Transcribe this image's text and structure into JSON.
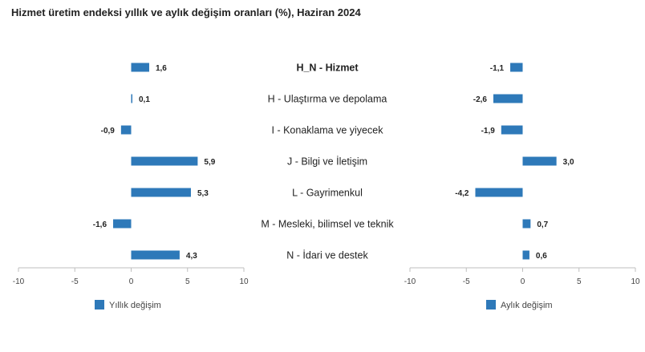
{
  "title": "Hizmet üretim endeksi yıllık ve aylık değişim oranları (%), Haziran 2024",
  "colors": {
    "bar": "#2e79b9",
    "axis": "#bfbfbf"
  },
  "chart_data": [
    {
      "type": "bar",
      "orientation": "horizontal",
      "categories": [
        "H_N - Hizmet",
        "H - Ulaştırma ve depolama",
        "I - Konaklama ve yiyecek",
        "J - Bilgi ve İletişim",
        "L - Gayrimenkul",
        "M - Mesleki, bilimsel ve teknik",
        "N - İdari ve destek"
      ],
      "series": [
        {
          "name": "Yıllık değişim",
          "values": [
            1.6,
            0.1,
            -0.9,
            5.9,
            5.3,
            -1.6,
            4.3
          ]
        }
      ],
      "labels": [
        "1,6",
        "0,1",
        "-0,9",
        "5,9",
        "5,3",
        "-1,6",
        "4,3"
      ],
      "xlim": [
        -10,
        10
      ],
      "ticks": [
        -10,
        -5,
        0,
        5,
        10
      ],
      "tick_labels": [
        "-10",
        "-5",
        "0",
        "5",
        "10"
      ],
      "legend": "bottom-left"
    },
    {
      "type": "bar",
      "orientation": "horizontal",
      "categories": [
        "H_N - Hizmet",
        "H - Ulaştırma ve depolama",
        "I - Konaklama ve yiyecek",
        "J - Bilgi ve İletişim",
        "L - Gayrimenkul",
        "M - Mesleki, bilimsel ve teknik",
        "N - İdari ve destek"
      ],
      "series": [
        {
          "name": "Aylık değişim",
          "values": [
            -1.1,
            -2.6,
            -1.9,
            3.0,
            -4.2,
            0.7,
            0.6
          ]
        }
      ],
      "labels": [
        "-1,1",
        "-2,6",
        "-1,9",
        "3,0",
        "-4,2",
        "0,7",
        "0,6"
      ],
      "xlim": [
        -10,
        10
      ],
      "ticks": [
        -10,
        -5,
        0,
        5,
        10
      ],
      "tick_labels": [
        "-10",
        "-5",
        "0",
        "5",
        "10"
      ],
      "legend": "bottom-left"
    }
  ]
}
